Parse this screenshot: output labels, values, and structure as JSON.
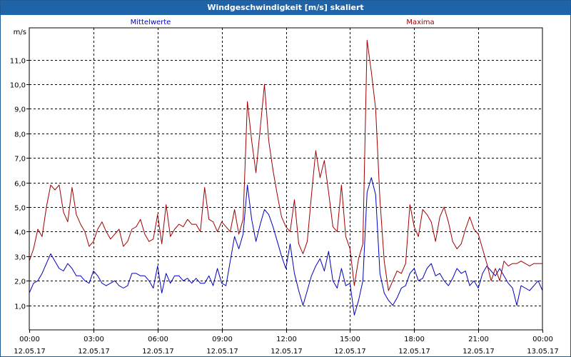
{
  "window": {
    "title": "Windgeschwindigkeit [m/s] skaliert"
  },
  "chart_data": {
    "type": "line",
    "title": "Windgeschwindigkeit [m/s] skaliert",
    "ylabel": "m/s",
    "xlabel": "",
    "ylim": [
      0,
      12.3
    ],
    "xlim": [
      0,
      24
    ],
    "y_ticks": [
      1.0,
      2.0,
      3.0,
      4.0,
      5.0,
      6.0,
      7.0,
      8.0,
      9.0,
      10.0,
      11.0
    ],
    "y_tick_labels": [
      "1,0",
      "2,0",
      "3,0",
      "4,0",
      "5,0",
      "6,0",
      "7,0",
      "8,0",
      "9,0",
      "10,0",
      "11,0"
    ],
    "x_ticks": [
      {
        "hours": 0,
        "time": "00:00",
        "date": "12.05.17"
      },
      {
        "hours": 3,
        "time": "03:00",
        "date": "12.05.17"
      },
      {
        "hours": 6,
        "time": "06:00",
        "date": "12.05.17"
      },
      {
        "hours": 9,
        "time": "09:00",
        "date": "12.05.17"
      },
      {
        "hours": 12,
        "time": "12:00",
        "date": "12.05.17"
      },
      {
        "hours": 15,
        "time": "15:00",
        "date": "12.05.17"
      },
      {
        "hours": 18,
        "time": "18:00",
        "date": "12.05.17"
      },
      {
        "hours": 21,
        "time": "21:00",
        "date": "12.05.17"
      },
      {
        "hours": 24,
        "time": "00:00",
        "date": "13.05.17"
      }
    ],
    "grid": true,
    "legend": "top",
    "series": [
      {
        "name": "Mittelwerte",
        "color": "#0000c0",
        "x": [
          0,
          0.2,
          0.4,
          0.6,
          0.8,
          1.0,
          1.2,
          1.4,
          1.6,
          1.8,
          2.0,
          2.2,
          2.4,
          2.6,
          2.8,
          3.0,
          3.2,
          3.4,
          3.6,
          3.8,
          4.0,
          4.2,
          4.4,
          4.6,
          4.8,
          5.0,
          5.2,
          5.4,
          5.6,
          5.8,
          6.0,
          6.2,
          6.4,
          6.6,
          6.8,
          7.0,
          7.2,
          7.4,
          7.6,
          7.8,
          8.0,
          8.2,
          8.4,
          8.6,
          8.8,
          9.0,
          9.2,
          9.4,
          9.6,
          9.8,
          10.0,
          10.2,
          10.4,
          10.6,
          10.8,
          11.0,
          11.2,
          11.4,
          11.6,
          11.8,
          12.0,
          12.2,
          12.4,
          12.6,
          12.8,
          13.0,
          13.2,
          13.4,
          13.6,
          13.8,
          14.0,
          14.2,
          14.4,
          14.6,
          14.8,
          15.0,
          15.2,
          15.4,
          15.6,
          15.8,
          16.0,
          16.2,
          16.4,
          16.6,
          16.8,
          17.0,
          17.2,
          17.4,
          17.6,
          17.8,
          18.0,
          18.2,
          18.4,
          18.6,
          18.8,
          19.0,
          19.2,
          19.4,
          19.6,
          19.8,
          20.0,
          20.2,
          20.4,
          20.6,
          20.8,
          21.0,
          21.2,
          21.4,
          21.6,
          21.8,
          22.0,
          22.2,
          22.4,
          22.6,
          22.8,
          23.0,
          23.2,
          23.4,
          23.6,
          23.8,
          24.0
        ],
        "values": [
          1.5,
          1.9,
          2.0,
          2.3,
          2.7,
          3.1,
          2.8,
          2.5,
          2.4,
          2.7,
          2.5,
          2.2,
          2.2,
          2.0,
          1.9,
          2.4,
          2.2,
          1.9,
          1.8,
          1.9,
          2.0,
          1.8,
          1.7,
          1.8,
          2.3,
          2.3,
          2.2,
          2.2,
          2.0,
          1.7,
          2.6,
          1.5,
          2.3,
          1.9,
          2.2,
          2.2,
          2.0,
          2.1,
          1.9,
          2.1,
          1.9,
          1.9,
          2.2,
          1.8,
          2.5,
          1.9,
          1.8,
          2.8,
          3.8,
          3.3,
          3.9,
          5.9,
          4.5,
          3.6,
          4.3,
          4.9,
          4.7,
          4.2,
          3.6,
          3.0,
          2.5,
          3.5,
          2.3,
          1.6,
          1.0,
          1.6,
          2.2,
          2.6,
          2.9,
          2.4,
          3.2,
          2.0,
          1.7,
          2.5,
          1.8,
          1.9,
          0.6,
          1.2,
          2.0,
          5.6,
          6.2,
          5.5,
          2.3,
          1.5,
          1.2,
          1.0,
          1.3,
          1.7,
          1.8,
          2.3,
          2.5,
          2.0,
          2.1,
          2.5,
          2.7,
          2.2,
          2.3,
          2.0,
          1.8,
          2.1,
          2.5,
          2.3,
          2.4,
          1.8,
          2.0,
          1.7,
          2.3,
          2.6,
          2.4,
          2.2,
          2.5,
          2.2,
          1.9,
          1.7,
          1.0,
          1.8,
          1.7,
          1.6,
          1.8,
          2.0,
          1.6
        ]
      },
      {
        "name": "Maxima",
        "color": "#a00000",
        "x": [
          0,
          0.2,
          0.4,
          0.6,
          0.8,
          1.0,
          1.2,
          1.4,
          1.6,
          1.8,
          2.0,
          2.2,
          2.4,
          2.6,
          2.8,
          3.0,
          3.2,
          3.4,
          3.6,
          3.8,
          4.0,
          4.2,
          4.4,
          4.6,
          4.8,
          5.0,
          5.2,
          5.4,
          5.6,
          5.8,
          6.0,
          6.2,
          6.4,
          6.6,
          6.8,
          7.0,
          7.2,
          7.4,
          7.6,
          7.8,
          8.0,
          8.2,
          8.4,
          8.6,
          8.8,
          9.0,
          9.2,
          9.4,
          9.6,
          9.8,
          10.0,
          10.2,
          10.4,
          10.6,
          10.8,
          11.0,
          11.2,
          11.4,
          11.6,
          11.8,
          12.0,
          12.2,
          12.4,
          12.6,
          12.8,
          13.0,
          13.2,
          13.4,
          13.6,
          13.8,
          14.0,
          14.2,
          14.4,
          14.6,
          14.8,
          15.0,
          15.2,
          15.4,
          15.6,
          15.8,
          16.0,
          16.2,
          16.4,
          16.6,
          16.8,
          17.0,
          17.2,
          17.4,
          17.6,
          17.8,
          18.0,
          18.2,
          18.4,
          18.6,
          18.8,
          19.0,
          19.2,
          19.4,
          19.6,
          19.8,
          20.0,
          20.2,
          20.4,
          20.6,
          20.8,
          21.0,
          21.2,
          21.4,
          21.6,
          21.8,
          22.0,
          22.2,
          22.4,
          22.6,
          22.8,
          23.0,
          23.2,
          23.4,
          23.6,
          23.8,
          24.0
        ],
        "values": [
          2.8,
          3.3,
          4.1,
          3.8,
          5.0,
          5.9,
          5.7,
          5.9,
          4.8,
          4.4,
          5.8,
          4.7,
          4.3,
          4.0,
          3.4,
          3.6,
          4.1,
          4.4,
          4.0,
          3.7,
          3.9,
          4.1,
          3.4,
          3.6,
          4.1,
          4.2,
          4.5,
          3.9,
          3.6,
          3.7,
          4.7,
          3.5,
          5.1,
          3.8,
          4.1,
          4.3,
          4.2,
          4.5,
          4.3,
          4.3,
          4.0,
          5.8,
          4.5,
          4.4,
          4.0,
          4.4,
          4.2,
          4.0,
          4.9,
          3.9,
          4.5,
          9.3,
          7.7,
          6.4,
          8.2,
          10.0,
          7.7,
          6.5,
          5.5,
          4.6,
          4.2,
          4.0,
          5.3,
          3.5,
          3.1,
          3.6,
          5.5,
          7.3,
          6.2,
          6.9,
          5.6,
          4.2,
          4.0,
          5.9,
          3.8,
          3.3,
          1.8,
          2.9,
          3.5,
          11.8,
          10.5,
          9.0,
          5.3,
          2.8,
          1.6,
          2.0,
          2.4,
          2.3,
          2.7,
          5.1,
          4.2,
          3.8,
          4.9,
          4.7,
          4.4,
          3.6,
          4.6,
          5.0,
          4.4,
          3.6,
          3.3,
          3.5,
          4.1,
          4.6,
          4.1,
          3.9,
          3.3,
          2.7,
          2.0,
          2.5,
          2.0,
          2.8,
          2.6,
          2.7,
          2.7,
          2.8,
          2.7,
          2.6,
          2.7,
          2.7,
          2.7
        ]
      }
    ]
  }
}
